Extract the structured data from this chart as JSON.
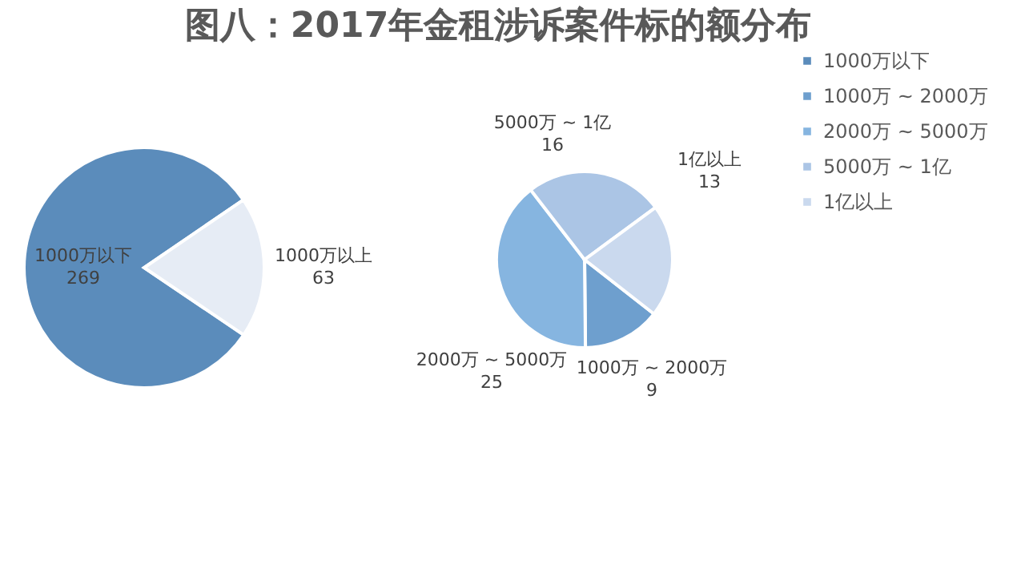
{
  "chart_data": [
    {
      "type": "pie",
      "title": "图八：2017年金租涉诉案件标的额分布",
      "categories": [
        "1000万以下",
        "1000万以上"
      ],
      "values": [
        269,
        63
      ],
      "colors": [
        "#5b8cbb",
        "#e6ecf5"
      ],
      "data_labels": true
    },
    {
      "type": "pie",
      "categories": [
        "1000万 ~ 2000万",
        "2000万 ~ 5000万",
        "5000万 ~ 1亿",
        "1亿以上"
      ],
      "values": [
        9,
        25,
        16,
        13
      ],
      "colors": [
        "#6e9fce",
        "#86b5e0",
        "#abc5e5",
        "#cad9ee"
      ],
      "data_labels": true,
      "legend": "right"
    }
  ]
}
